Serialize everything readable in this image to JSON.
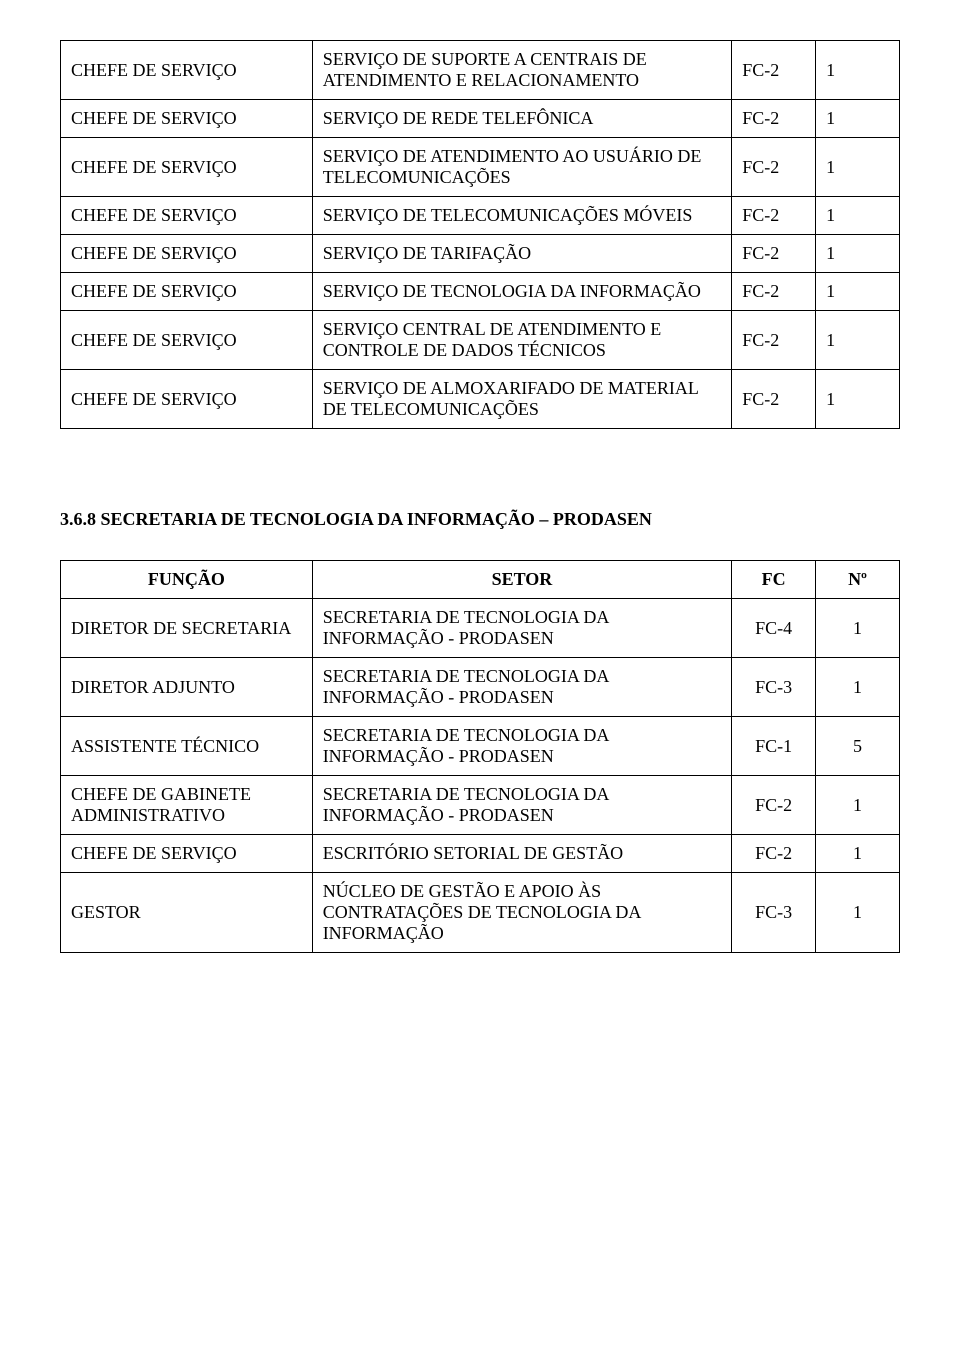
{
  "table1": {
    "rows": [
      {
        "funcao": "CHEFE DE SERVIÇO",
        "setor": "SERVIÇO DE SUPORTE A CENTRAIS DE ATENDIMENTO E RELACIONAMENTO",
        "fc": "FC-2",
        "n": "1"
      },
      {
        "funcao": "CHEFE DE SERVIÇO",
        "setor": "SERVIÇO DE REDE TELEFÔNICA",
        "fc": "FC-2",
        "n": "1"
      },
      {
        "funcao": "CHEFE DE SERVIÇO",
        "setor": "SERVIÇO DE ATENDIMENTO AO USUÁRIO DE TELECOMUNICAÇÕES",
        "fc": "FC-2",
        "n": "1"
      },
      {
        "funcao": "CHEFE DE SERVIÇO",
        "setor": "SERVIÇO DE TELECOMUNICAÇÕES MÓVEIS",
        "fc": "FC-2",
        "n": "1"
      },
      {
        "funcao": "CHEFE DE SERVIÇO",
        "setor": "SERVIÇO DE TARIFAÇÃO",
        "fc": "FC-2",
        "n": "1"
      },
      {
        "funcao": "CHEFE DE SERVIÇO",
        "setor": "SERVIÇO DE TECNOLOGIA DA INFORMAÇÃO",
        "fc": "FC-2",
        "n": "1"
      },
      {
        "funcao": "CHEFE DE SERVIÇO",
        "setor": "SERVIÇO CENTRAL DE ATENDIMENTO E CONTROLE DE DADOS TÉCNICOS",
        "fc": "FC-2",
        "n": "1"
      },
      {
        "funcao": "CHEFE DE SERVIÇO",
        "setor": "SERVIÇO DE ALMOXARIFADO DE MATERIAL DE TELECOMUNICAÇÕES",
        "fc": "FC-2",
        "n": "1"
      }
    ]
  },
  "section_heading": "3.6.8  SECRETARIA DE TECNOLOGIA DA INFORMAÇÃO – PRODASEN",
  "table2": {
    "columns": {
      "funcao": "FUNÇÃO",
      "setor": "SETOR",
      "fc": "FC",
      "n": "Nº"
    },
    "rows": [
      {
        "funcao": "DIRETOR DE SECRETARIA",
        "setor": "SECRETARIA DE TECNOLOGIA DA INFORMAÇÃO - PRODASEN",
        "fc": "FC-4",
        "n": "1"
      },
      {
        "funcao": "DIRETOR ADJUNTO",
        "setor": "SECRETARIA DE TECNOLOGIA DA INFORMAÇÃO - PRODASEN",
        "fc": "FC-3",
        "n": "1"
      },
      {
        "funcao": "ASSISTENTE TÉCNICO",
        "setor": "SECRETARIA DE TECNOLOGIA DA INFORMAÇÃO - PRODASEN",
        "fc": "FC-1",
        "n": "5"
      },
      {
        "funcao": "CHEFE DE GABINETE ADMINISTRATIVO",
        "setor": "SECRETARIA DE TECNOLOGIA DA INFORMAÇÃO - PRODASEN",
        "fc": "FC-2",
        "n": "1"
      },
      {
        "funcao": "CHEFE DE SERVIÇO",
        "setor": "ESCRITÓRIO SETORIAL DE GESTÃO",
        "fc": "FC-2",
        "n": "1"
      },
      {
        "funcao": "GESTOR",
        "setor": "NÚCLEO DE GESTÃO E APOIO ÀS CONTRATAÇÕES DE TECNOLOGIA DA INFORMAÇÃO",
        "fc": "FC-3",
        "n": "1"
      }
    ]
  },
  "styling": {
    "page_background": "#ffffff",
    "text_color": "#000000",
    "border_color": "#000000",
    "font_family": "Times New Roman",
    "base_font_size_pt": 14,
    "column_widths_pct": {
      "funcao": 30,
      "setor": 50,
      "fc": 10,
      "n": 10
    }
  }
}
